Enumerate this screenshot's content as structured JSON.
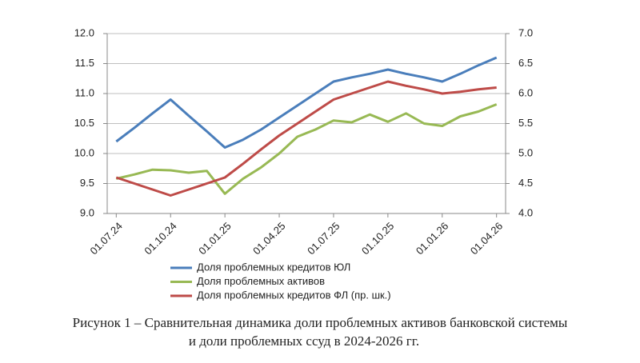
{
  "chart_data": {
    "type": "line",
    "categories": [
      "01.07.24",
      null,
      null,
      "01.10.24",
      null,
      null,
      "01.01.25",
      null,
      null,
      "01.04.25",
      null,
      null,
      "01.07.25",
      null,
      null,
      "01.10.25",
      null,
      null,
      "01.01.26",
      null,
      null,
      "01.04.26"
    ],
    "series": [
      {
        "name": "Доля проблемных кредитов ЮЛ",
        "color": "#4a7ebb",
        "values": [
          10.2,
          10.43,
          10.67,
          10.9,
          10.63,
          10.37,
          10.1,
          10.23,
          10.4,
          10.6,
          10.8,
          11.0,
          11.2,
          11.27,
          11.33,
          11.4,
          11.33,
          11.27,
          11.2,
          11.33,
          11.47,
          11.6
        ]
      },
      {
        "name": "Доля проблемных активов",
        "color": "#98b954",
        "values": [
          9.58,
          9.65,
          9.73,
          9.72,
          9.68,
          9.71,
          9.33,
          9.58,
          9.77,
          10.0,
          10.28,
          10.4,
          10.55,
          10.52,
          10.65,
          10.53,
          10.67,
          10.5,
          10.46,
          10.62,
          10.7,
          10.82
        ]
      },
      {
        "name": "Доля проблемных кредитов ФЛ (пр. шк.)",
        "color": "#be4b48",
        "axis": "y2",
        "values": [
          4.6,
          4.5,
          4.4,
          4.3,
          4.4,
          4.5,
          4.6,
          4.83,
          5.07,
          5.3,
          5.5,
          5.7,
          5.9,
          6.0,
          6.1,
          6.2,
          6.13,
          6.07,
          6.0,
          6.03,
          6.07,
          6.1
        ]
      }
    ],
    "ylim": [
      9,
      12
    ],
    "yticks": [
      {
        "value": 9,
        "label": "9.0"
      },
      9.5,
      {
        "value": 10,
        "label": "10.0"
      },
      10.5,
      {
        "value": 11,
        "label": "11.0"
      },
      11.5,
      {
        "value": 12,
        "label": "12.0"
      }
    ],
    "y2lim": [
      4,
      7
    ],
    "y2ticks": [
      {
        "value": 4,
        "label": "4.0"
      },
      4.5,
      {
        "value": 5,
        "label": "5.0"
      },
      5.5,
      {
        "value": 6,
        "label": "6.0"
      },
      6.5,
      {
        "value": 7,
        "label": "7.0"
      }
    ],
    "grid": true,
    "caption": [
      "Рисунок 1 – Сравнительная динамика доли проблемных активов банковской системы",
      "и доли проблемных ссуд в 2024-2026 гг."
    ]
  }
}
